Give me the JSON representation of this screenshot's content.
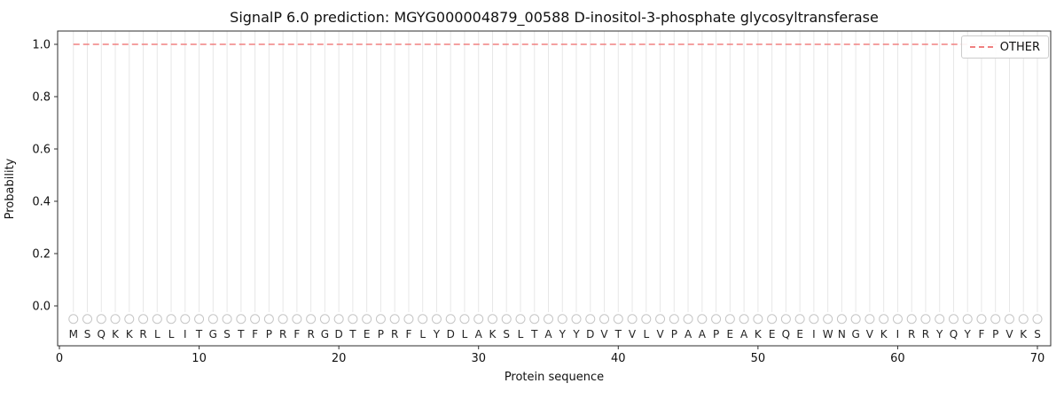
{
  "chart_data": {
    "type": "line",
    "title": "SignalP 6.0 prediction: MGYG000004879_00588 D-inositol-3-phosphate glycosyltransferase",
    "xlabel": "Protein sequence",
    "ylabel": "Probability",
    "x_ticks": [
      0,
      10,
      20,
      30,
      40,
      50,
      60,
      70
    ],
    "y_ticks": [
      0.0,
      0.2,
      0.4,
      0.6,
      0.8,
      1.0
    ],
    "xlim": [
      0,
      71
    ],
    "ylim": [
      -0.15,
      1.05
    ],
    "grid": {
      "vertical_per_residue": true,
      "color": "#e7e7e7"
    },
    "sequence": "MSQKKRLLITGSTFPRFRGDTEPRFLYDLAKSLTAYYDVTVLVPAAPEAKEQEIWNGVKIRRYQYFPVKS",
    "sequence_length": 70,
    "series": [
      {
        "name": "OTHER",
        "y": 1.0,
        "x_range": [
          1,
          70
        ],
        "style": "dashed",
        "color": "#f08080"
      }
    ],
    "residue_markers": {
      "y": -0.05,
      "shape": "open-circle",
      "stroke": "#c6c6c6"
    },
    "legend": {
      "position": "upper-right",
      "entries": [
        {
          "label": "OTHER",
          "color": "#f08080",
          "dashed": true
        }
      ]
    },
    "colors": {
      "axis": "#2e2e2e",
      "tick_label": "#111111",
      "letter": "#222222",
      "background": "#ffffff"
    }
  }
}
